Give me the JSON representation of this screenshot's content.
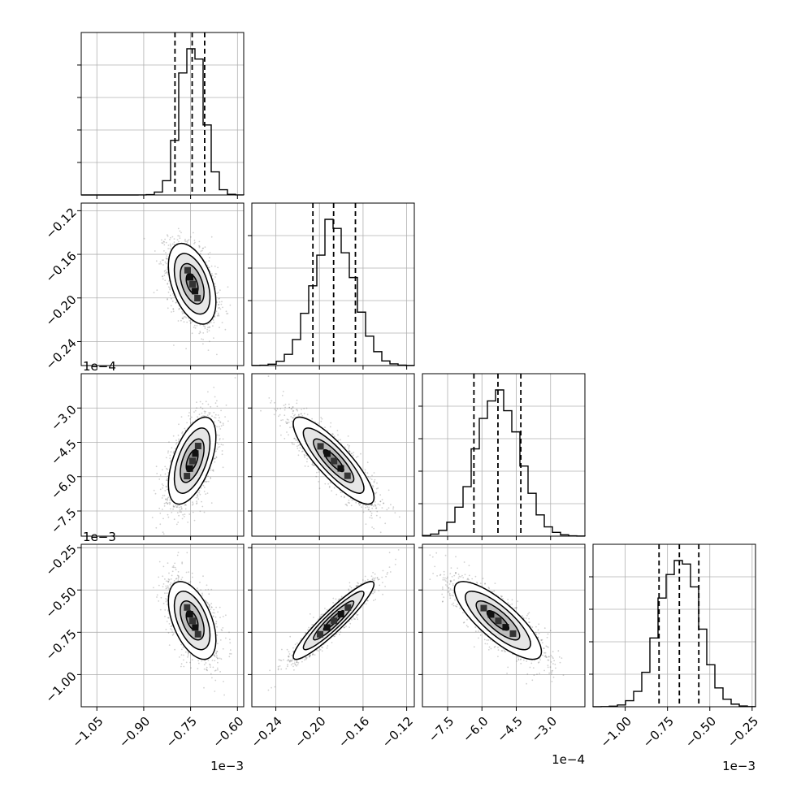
{
  "chart_data": {
    "type": "scatter",
    "title": "",
    "grid": true,
    "params": [
      {
        "name": "",
        "range": [
          -1.1,
          -0.58
        ],
        "ticks": [
          -1.05,
          -0.9,
          -0.75,
          -0.6
        ],
        "tick_labels": [
          "−1.05",
          "−0.90",
          "−0.75",
          "−0.60"
        ],
        "offset": "1e−3",
        "quantiles": [
          -0.8,
          -0.745,
          -0.705
        ],
        "mean": -0.745,
        "sd": 0.038
      },
      {
        "name": "",
        "range": [
          -0.262,
          -0.113
        ],
        "ticks": [
          -0.24,
          -0.2,
          -0.16,
          -0.12
        ],
        "tick_labels": [
          "−0.24",
          "−0.20",
          "−0.16",
          "−0.12"
        ],
        "offset": "",
        "quantiles": [
          -0.206,
          -0.187,
          -0.167
        ],
        "mean": -0.187,
        "sd": 0.0185
      },
      {
        "name": "",
        "range": [
          -8.6,
          -1.5
        ],
        "ticks": [
          -7.5,
          -6.0,
          -4.5,
          -3.0
        ],
        "tick_labels": [
          "−7.5",
          "−6.0",
          "−4.5",
          "−3.0"
        ],
        "offset": "1e−4",
        "quantiles": [
          -6.35,
          -5.3,
          -4.3
        ],
        "mean": -5.3,
        "sd": 0.95
      },
      {
        "name": "",
        "range": [
          -1.19,
          -0.23
        ],
        "ticks": [
          -1.0,
          -0.75,
          -0.5,
          -0.25
        ],
        "tick_labels": [
          "−1.00",
          "−0.75",
          "−0.50",
          "−0.25"
        ],
        "offset": "1e−3",
        "quantiles": [
          -0.8,
          -0.68,
          -0.565
        ],
        "mean": -0.68,
        "sd": 0.115
      }
    ],
    "y_tick_offsets": [
      "",
      "",
      "1e−4",
      "1e−3"
    ],
    "correlations": {
      "1_0": -0.45,
      "2_0": 0.55,
      "2_1": -0.85,
      "3_0": -0.5,
      "3_1": 0.93,
      "3_2": -0.8
    },
    "contour_levels_sigma": [
      0.5,
      1.0,
      1.5,
      2.0
    ]
  }
}
